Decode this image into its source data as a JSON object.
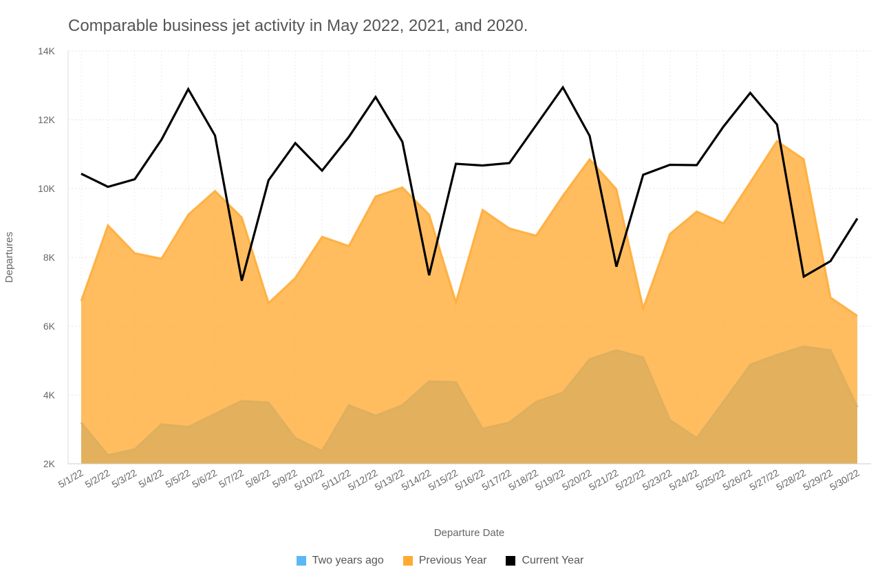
{
  "chart_data": {
    "type": "area",
    "title": "Comparable business jet activity in May 2022, 2021, and 2020.",
    "xlabel": "Departure Date",
    "ylabel": "Departures",
    "ylim": [
      2000,
      14000
    ],
    "yticks": [
      2000,
      4000,
      6000,
      8000,
      10000,
      12000,
      14000
    ],
    "ytick_labels": [
      "2K",
      "4K",
      "6K",
      "8K",
      "10K",
      "12K",
      "14K"
    ],
    "categories": [
      "5/1/22",
      "5/2/22",
      "5/3/22",
      "5/4/22",
      "5/5/22",
      "5/6/22",
      "5/7/22",
      "5/8/22",
      "5/9/22",
      "5/10/22",
      "5/11/22",
      "5/12/22",
      "5/13/22",
      "5/14/22",
      "5/15/22",
      "5/16/22",
      "5/17/22",
      "5/18/22",
      "5/19/22",
      "5/20/22",
      "5/21/22",
      "5/22/22",
      "5/23/22",
      "5/24/22",
      "5/25/22",
      "5/26/22",
      "5/27/22",
      "5/28/22",
      "5/29/22",
      "5/30/22"
    ],
    "series": [
      {
        "name": "Two years ago",
        "kind": "area",
        "color": "#5cb8f5",
        "values": [
          3200,
          2250,
          2420,
          3150,
          3070,
          3450,
          3830,
          3780,
          2750,
          2370,
          3700,
          3400,
          3700,
          4400,
          4370,
          3020,
          3200,
          3800,
          4070,
          5040,
          5300,
          5090,
          3270,
          2750,
          3800,
          4880,
          5170,
          5410,
          5300,
          3650
        ]
      },
      {
        "name": "Previous Year",
        "kind": "area",
        "color": "#ffaa33",
        "values": [
          6730,
          8930,
          8120,
          7960,
          9240,
          9930,
          9160,
          6670,
          7400,
          8600,
          8330,
          9770,
          10030,
          9240,
          6700,
          9380,
          8840,
          8630,
          9790,
          10850,
          9980,
          6520,
          8680,
          9330,
          8990,
          10180,
          11380,
          10850,
          6830,
          6300
        ]
      },
      {
        "name": "Current Year",
        "kind": "line",
        "color": "#000000",
        "values": [
          10430,
          10050,
          10270,
          11420,
          12890,
          11540,
          7320,
          10240,
          11320,
          10520,
          11500,
          12660,
          11360,
          7480,
          10720,
          10670,
          10740,
          11840,
          12940,
          11530,
          7730,
          10400,
          10690,
          10680,
          11800,
          12780,
          11860,
          7440,
          7890,
          9130
        ]
      }
    ],
    "legend": {
      "position": "bottom-center"
    },
    "grid": true
  }
}
